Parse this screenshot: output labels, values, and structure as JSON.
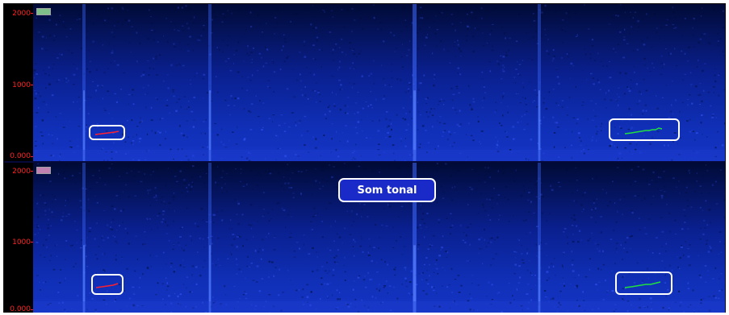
{
  "colors": {
    "axis_text": "#ff2222",
    "top_channel_tag": "#7fc08a",
    "bottom_channel_tag": "#c080b0",
    "trace_red": "#ff2030",
    "trace_green": "#20e040",
    "box_border": "#ffffff",
    "spectrogram_low": "#000a40",
    "spectrogram_high": "#2a4aff"
  },
  "top_panel": {
    "axis": {
      "tick_2000": "2000",
      "tick_1000": "1000",
      "tick_0": "0.000"
    },
    "channel_tag": ""
  },
  "bottom_panel": {
    "axis": {
      "tick_2000": "2000",
      "tick_1000": "1000",
      "tick_0": "0.000"
    },
    "channel_tag": ""
  },
  "callout": {
    "label": "Som tonal"
  },
  "annotations": [
    {
      "name": "top-left-whistle",
      "color": "red",
      "icon": "whistle-trace"
    },
    {
      "name": "top-right-whistle",
      "color": "green",
      "icon": "whistle-trace"
    },
    {
      "name": "bottom-left-whistle",
      "color": "red",
      "icon": "whistle-trace"
    },
    {
      "name": "bottom-right-whistle",
      "color": "green",
      "icon": "whistle-trace"
    }
  ]
}
